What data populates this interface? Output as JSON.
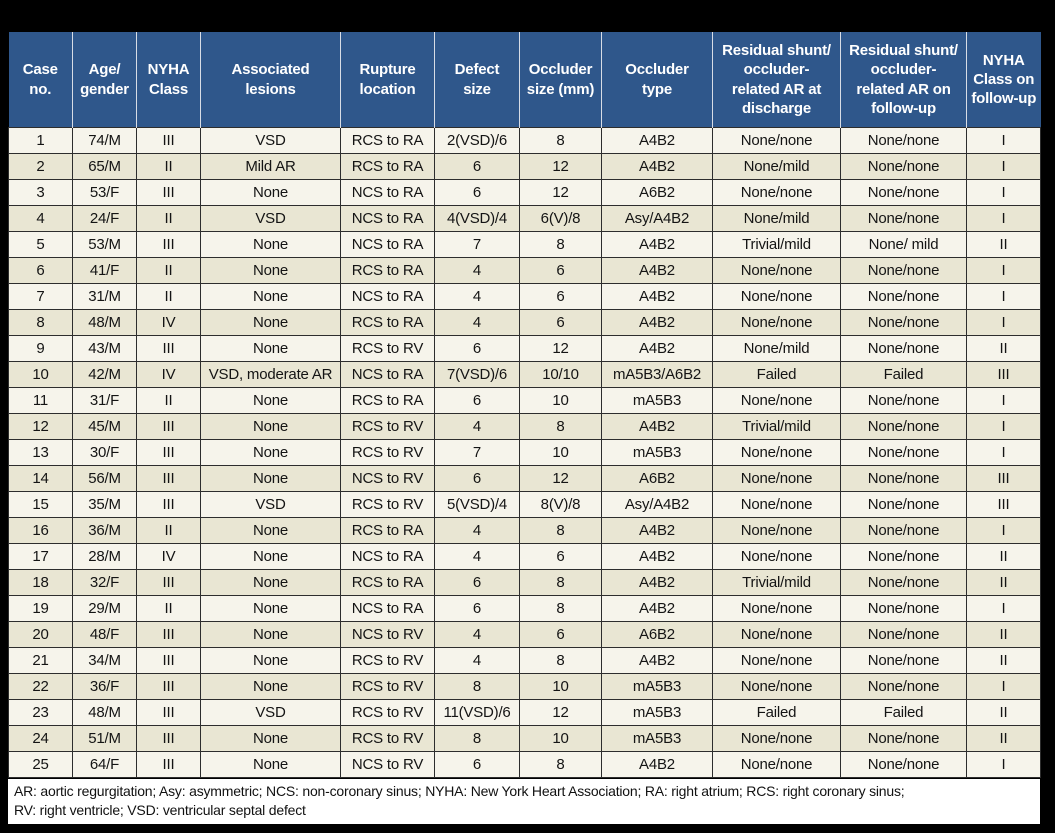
{
  "table": {
    "title_semantic": "Patient cases table",
    "columns": [
      "Case\nno.",
      "Age/\ngender",
      "NYHA\nClass",
      "Associated\nlesions",
      "Rupture\nlocation",
      "Defect\nsize",
      "Occluder\nsize (mm)",
      "Occluder\ntype",
      "Residual shunt/\noccluder-\nrelated AR at\ndischarge",
      "Residual shunt/\noccluder-\nrelated AR on\nfollow-up",
      "NYHA\nClass on\nfollow-up"
    ],
    "rows": [
      [
        "1",
        "74/M",
        "III",
        "VSD",
        "RCS to RA",
        "2(VSD)/6",
        "8",
        "A4B2",
        "None/none",
        "None/none",
        "I"
      ],
      [
        "2",
        "65/M",
        "II",
        "Mild AR",
        "RCS to RA",
        "6",
        "12",
        "A4B2",
        "None/mild",
        "None/none",
        "I"
      ],
      [
        "3",
        "53/F",
        "III",
        "None",
        "NCS to RA",
        "6",
        "12",
        "A6B2",
        "None/none",
        "None/none",
        "I"
      ],
      [
        "4",
        "24/F",
        "II",
        "VSD",
        "NCS to RA",
        "4(VSD)/4",
        "6(V)/8",
        "Asy/A4B2",
        "None/mild",
        "None/none",
        "I"
      ],
      [
        "5",
        "53/M",
        "III",
        "None",
        "NCS to RA",
        "7",
        "8",
        "A4B2",
        "Trivial/mild",
        "None/ mild",
        "II"
      ],
      [
        "6",
        "41/F",
        "II",
        "None",
        "RCS to RA",
        "4",
        "6",
        "A4B2",
        "None/none",
        "None/none",
        "I"
      ],
      [
        "7",
        "31/M",
        "II",
        "None",
        "NCS to RA",
        "4",
        "6",
        "A4B2",
        "None/none",
        "None/none",
        "I"
      ],
      [
        "8",
        "48/M",
        "IV",
        "None",
        "RCS to RA",
        "4",
        "6",
        "A4B2",
        "None/none",
        "None/none",
        "I"
      ],
      [
        "9",
        "43/M",
        "III",
        "None",
        "RCS to RV",
        "6",
        "12",
        "A4B2",
        "None/mild",
        "None/none",
        "II"
      ],
      [
        "10",
        "42/M",
        "IV",
        "VSD, moderate AR",
        "NCS to RA",
        "7(VSD)/6",
        "10/10",
        "mA5B3/A6B2",
        "Failed",
        "Failed",
        "III"
      ],
      [
        "11",
        "31/F",
        "II",
        "None",
        "RCS to RA",
        "6",
        "10",
        "mA5B3",
        "None/none",
        "None/none",
        "I"
      ],
      [
        "12",
        "45/M",
        "III",
        "None",
        "RCS to RV",
        "4",
        "8",
        "A4B2",
        "Trivial/mild",
        "None/none",
        "I"
      ],
      [
        "13",
        "30/F",
        "III",
        "None",
        "RCS to RV",
        "7",
        "10",
        "mA5B3",
        "None/none",
        "None/none",
        "I"
      ],
      [
        "14",
        "56/M",
        "III",
        "None",
        "NCS to RV",
        "6",
        "12",
        "A6B2",
        "None/none",
        "None/none",
        "III"
      ],
      [
        "15",
        "35/M",
        "III",
        "VSD",
        "RCS to RV",
        "5(VSD)/4",
        "8(V)/8",
        "Asy/A4B2",
        "None/none",
        "None/none",
        "III"
      ],
      [
        "16",
        "36/M",
        "II",
        "None",
        "RCS to RA",
        "4",
        "8",
        "A4B2",
        "None/none",
        "None/none",
        "I"
      ],
      [
        "17",
        "28/M",
        "IV",
        "None",
        "NCS to RA",
        "4",
        "6",
        "A4B2",
        "None/none",
        "None/none",
        "II"
      ],
      [
        "18",
        "32/F",
        "III",
        "None",
        "RCS to RA",
        "6",
        "8",
        "A4B2",
        "Trivial/mild",
        "None/none",
        "II"
      ],
      [
        "19",
        "29/M",
        "II",
        "None",
        "NCS to RA",
        "6",
        "8",
        "A4B2",
        "None/none",
        "None/none",
        "I"
      ],
      [
        "20",
        "48/F",
        "III",
        "None",
        "NCS to RV",
        "4",
        "6",
        "A6B2",
        "None/none",
        "None/none",
        "II"
      ],
      [
        "21",
        "34/M",
        "III",
        "None",
        "RCS to RV",
        "4",
        "8",
        "A4B2",
        "None/none",
        "None/none",
        "II"
      ],
      [
        "22",
        "36/F",
        "III",
        "None",
        "RCS to RV",
        "8",
        "10",
        "mA5B3",
        "None/none",
        "None/none",
        "I"
      ],
      [
        "23",
        "48/M",
        "III",
        "VSD",
        "RCS to RV",
        "11(VSD)/6",
        "12",
        "mA5B3",
        "Failed",
        "Failed",
        "II"
      ],
      [
        "24",
        "51/M",
        "III",
        "None",
        "RCS to RV",
        "8",
        "10",
        "mA5B3",
        "None/none",
        "None/none",
        "II"
      ],
      [
        "25",
        "64/F",
        "III",
        "None",
        "NCS to RV",
        "6",
        "8",
        "A4B2",
        "None/none",
        "None/none",
        "I"
      ]
    ],
    "footnote_line1": "AR: aortic regurgitation; Asy: asymmetric; NCS: non-coronary sinus; NYHA: New York Heart Association; RA: right atrium; RCS: right coronary sinus;",
    "footnote_line2": "RV: right ventricle; VSD: ventricular septal defect"
  },
  "colors": {
    "header_background": "#2F578B",
    "header_text": "#FFFFFF",
    "row_light": "#F6F4EB",
    "row_dark": "#E9E6D3",
    "grid_line": "#2D2D2D",
    "page_background": "#000000",
    "footnote_background": "#FFFFFF"
  }
}
